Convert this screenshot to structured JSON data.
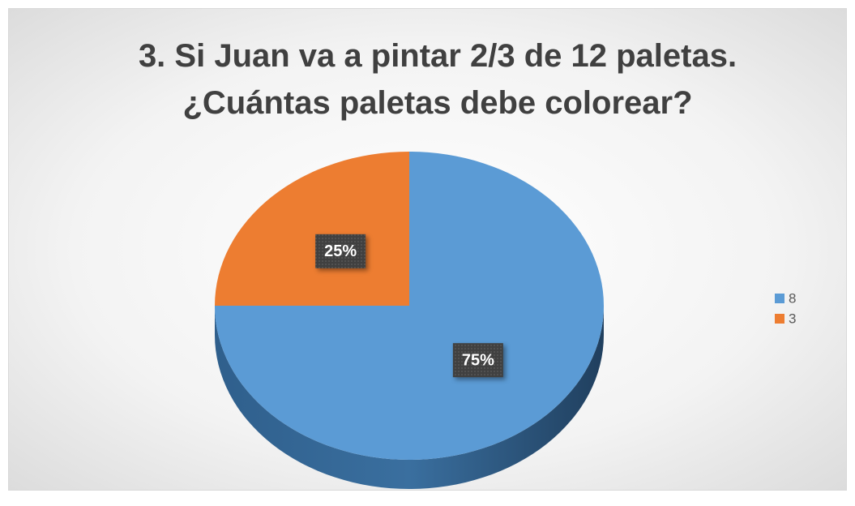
{
  "chart_data": {
    "type": "pie",
    "title": "3. Si Juan va a pintar 2/3 de 12 paletas. ¿Cuántas paletas debe colorear?",
    "categories": [
      "8",
      "3"
    ],
    "values": [
      75,
      25
    ],
    "value_labels": [
      "75%",
      "25%"
    ],
    "colors": [
      "#5b9bd5",
      "#ed7d31"
    ],
    "legend": "right"
  }
}
